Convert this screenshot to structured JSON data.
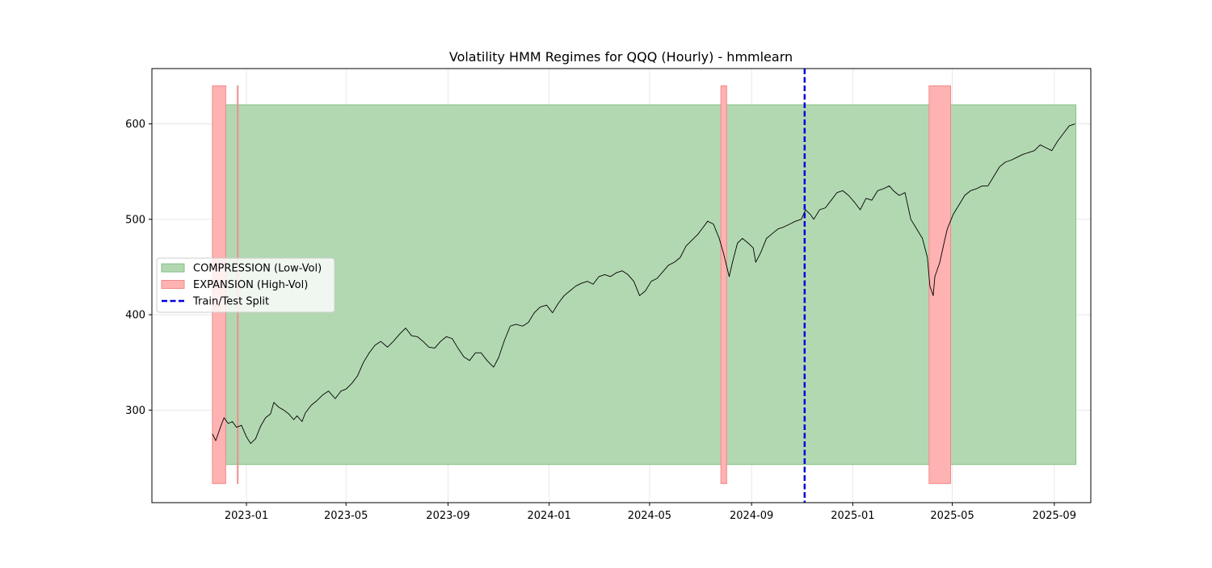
{
  "chart_data": {
    "type": "line",
    "title": "Volatility HMM Regimes for QQQ (Hourly) - hmmlearn",
    "xlabel": "",
    "ylabel": "",
    "xlim": [
      "2022-09-09",
      "2025-10-15"
    ],
    "ylim": [
      203,
      658
    ],
    "x_ticks": [
      "2023-01",
      "2023-05",
      "2023-09",
      "2024-01",
      "2024-05",
      "2024-09",
      "2025-01",
      "2025-05",
      "2025-09"
    ],
    "y_ticks": [
      300,
      400,
      500,
      600
    ],
    "grid": true,
    "legend_position": "center-left",
    "legend": [
      {
        "label": "COMPRESSION (Low-Vol)",
        "kind": "patch",
        "color": "#b2d8b2",
        "edge": "#86c086"
      },
      {
        "label": "EXPANSION (High-Vol)",
        "kind": "patch",
        "color": "#ffb2b2",
        "edge": "#f08a8a"
      },
      {
        "label": "Train/Test Split",
        "kind": "dashed-line",
        "color": "#0000dd"
      }
    ],
    "compression_band": {
      "start": "2022-11-21",
      "end": "2025-09-27",
      "low": 243,
      "high": 620,
      "color": "#b2d8b2",
      "edge": "#86c086"
    },
    "expansion_periods": [
      {
        "start": "2022-11-21",
        "end": "2022-12-07",
        "low": 223,
        "high": 640
      },
      {
        "start": "2022-12-21",
        "end": "2022-12-22",
        "low": 223,
        "high": 640
      },
      {
        "start": "2024-07-26",
        "end": "2024-08-02",
        "low": 223,
        "high": 640
      },
      {
        "start": "2025-04-03",
        "end": "2025-04-29",
        "low": 223,
        "high": 640
      }
    ],
    "expansion_color": "#ffb2b2",
    "expansion_edge": "#f08a8a",
    "split_date": "2024-11-04",
    "split_color": "#0000dd",
    "series": [
      {
        "name": "",
        "color": "#000000",
        "x": [
          "2022-11-21",
          "2022-11-25",
          "2022-12-01",
          "2022-12-05",
          "2022-12-10",
          "2022-12-15",
          "2022-12-20",
          "2022-12-26",
          "2023-01-01",
          "2023-01-06",
          "2023-01-12",
          "2023-01-18",
          "2023-01-24",
          "2023-01-30",
          "2023-02-03",
          "2023-02-09",
          "2023-02-15",
          "2023-02-21",
          "2023-02-27",
          "2023-03-03",
          "2023-03-09",
          "2023-03-13",
          "2023-03-20",
          "2023-03-27",
          "2023-04-03",
          "2023-04-10",
          "2023-04-18",
          "2023-04-25",
          "2023-05-01",
          "2023-05-08",
          "2023-05-15",
          "2023-05-22",
          "2023-05-29",
          "2023-06-05",
          "2023-06-12",
          "2023-06-20",
          "2023-06-27",
          "2023-07-05",
          "2023-07-12",
          "2023-07-19",
          "2023-07-26",
          "2023-08-02",
          "2023-08-09",
          "2023-08-16",
          "2023-08-23",
          "2023-08-30",
          "2023-09-06",
          "2023-09-13",
          "2023-09-20",
          "2023-09-27",
          "2023-10-04",
          "2023-10-11",
          "2023-10-18",
          "2023-10-26",
          "2023-11-01",
          "2023-11-08",
          "2023-11-15",
          "2023-11-22",
          "2023-11-30",
          "2023-12-07",
          "2023-12-14",
          "2023-12-21",
          "2023-12-29",
          "2024-01-05",
          "2024-01-12",
          "2024-01-19",
          "2024-01-26",
          "2024-02-02",
          "2024-02-09",
          "2024-02-16",
          "2024-02-23",
          "2024-03-01",
          "2024-03-08",
          "2024-03-15",
          "2024-03-22",
          "2024-03-29",
          "2024-04-05",
          "2024-04-12",
          "2024-04-19",
          "2024-04-26",
          "2024-05-03",
          "2024-05-10",
          "2024-05-17",
          "2024-05-24",
          "2024-05-31",
          "2024-06-07",
          "2024-06-14",
          "2024-06-21",
          "2024-06-28",
          "2024-07-05",
          "2024-07-10",
          "2024-07-17",
          "2024-07-24",
          "2024-07-29",
          "2024-08-05",
          "2024-08-09",
          "2024-08-15",
          "2024-08-21",
          "2024-08-28",
          "2024-09-03",
          "2024-09-06",
          "2024-09-12",
          "2024-09-19",
          "2024-09-26",
          "2024-10-03",
          "2024-10-10",
          "2024-10-17",
          "2024-10-24",
          "2024-10-31",
          "2024-11-05",
          "2024-11-11",
          "2024-11-15",
          "2024-11-22",
          "2024-11-29",
          "2024-12-06",
          "2024-12-13",
          "2024-12-20",
          "2024-12-27",
          "2025-01-03",
          "2025-01-10",
          "2025-01-17",
          "2025-01-24",
          "2025-01-31",
          "2025-02-07",
          "2025-02-14",
          "2025-02-19",
          "2025-02-26",
          "2025-03-05",
          "2025-03-12",
          "2025-03-19",
          "2025-03-26",
          "2025-04-01",
          "2025-04-04",
          "2025-04-08",
          "2025-04-10",
          "2025-04-16",
          "2025-04-21",
          "2025-04-25",
          "2025-05-02",
          "2025-05-09",
          "2025-05-16",
          "2025-05-23",
          "2025-05-30",
          "2025-06-06",
          "2025-06-13",
          "2025-06-20",
          "2025-06-27",
          "2025-07-04",
          "2025-07-11",
          "2025-07-18",
          "2025-07-25",
          "2025-08-01",
          "2025-08-08",
          "2025-08-15",
          "2025-08-22",
          "2025-08-29",
          "2025-09-05",
          "2025-09-12",
          "2025-09-19",
          "2025-09-26"
        ],
        "values": [
          275,
          268,
          283,
          292,
          286,
          288,
          282,
          284,
          272,
          265,
          270,
          283,
          292,
          296,
          308,
          303,
          300,
          296,
          290,
          294,
          288,
          297,
          305,
          310,
          316,
          320,
          312,
          320,
          322,
          328,
          336,
          350,
          360,
          368,
          372,
          366,
          372,
          380,
          386,
          378,
          377,
          372,
          366,
          365,
          372,
          377,
          375,
          365,
          356,
          352,
          360,
          360,
          352,
          345,
          355,
          373,
          388,
          390,
          388,
          392,
          402,
          408,
          410,
          402,
          412,
          420,
          425,
          430,
          433,
          435,
          432,
          440,
          442,
          440,
          444,
          446,
          442,
          435,
          420,
          425,
          435,
          438,
          445,
          452,
          455,
          460,
          472,
          478,
          484,
          492,
          498,
          495,
          480,
          465,
          440,
          455,
          475,
          480,
          475,
          470,
          455,
          465,
          480,
          485,
          490,
          492,
          495,
          498,
          500,
          510,
          505,
          500,
          510,
          512,
          520,
          528,
          530,
          525,
          518,
          510,
          522,
          520,
          530,
          532,
          535,
          530,
          525,
          528,
          500,
          490,
          480,
          460,
          430,
          420,
          440,
          455,
          475,
          490,
          505,
          515,
          525,
          530,
          532,
          535,
          535,
          545,
          555,
          560,
          562,
          565,
          568,
          570,
          572,
          578,
          575,
          572,
          582,
          590,
          598,
          600
        ]
      }
    ]
  }
}
